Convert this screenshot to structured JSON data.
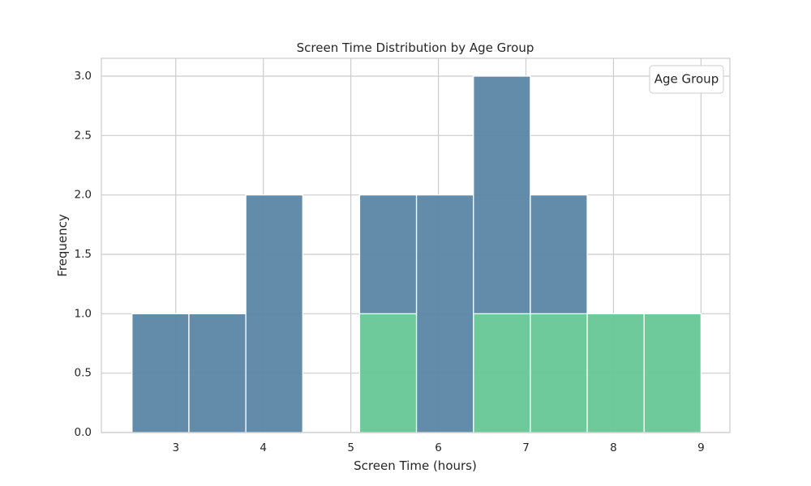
{
  "chart_data": {
    "type": "histogram",
    "title": "Screen Time Distribution by Age Group",
    "xlabel": "Screen Time (hours)",
    "ylabel": "Frequency",
    "legend_title": "Age Group",
    "legend_position": "top-right",
    "grid": true,
    "xlim": [
      2.15,
      9.33
    ],
    "ylim": [
      0,
      3.15
    ],
    "x_ticks": [
      3,
      4,
      5,
      6,
      7,
      8,
      9
    ],
    "y_ticks": [
      0.0,
      0.5,
      1.0,
      1.5,
      2.0,
      2.5,
      3.0
    ],
    "bin_edges": [
      2.5,
      3.15,
      3.8,
      4.45,
      5.1,
      5.75,
      6.4,
      7.05,
      7.7,
      8.35,
      9.0
    ],
    "stack_order": [
      "bottom",
      "top"
    ],
    "series": [
      {
        "color": "#66c795",
        "values": [
          0,
          0,
          0,
          0,
          1,
          0,
          1,
          1,
          1,
          1
        ]
      },
      {
        "color": "#5b86a6",
        "values": [
          1,
          1,
          2,
          0,
          1,
          2,
          2,
          1,
          0,
          0
        ]
      }
    ]
  },
  "colors": {
    "background": "#ffffff",
    "grid": "#cccccc",
    "spine": "#cccccc",
    "text": "#262626"
  }
}
